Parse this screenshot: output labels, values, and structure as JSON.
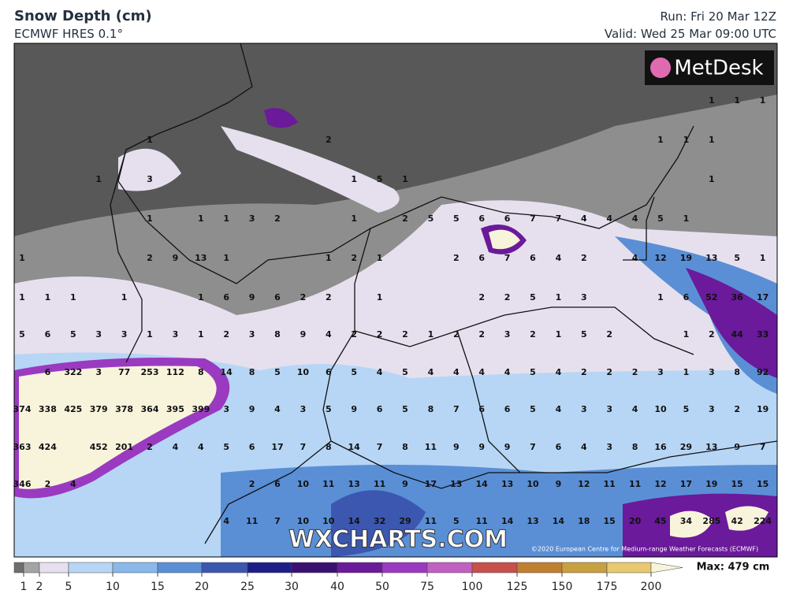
{
  "header": {
    "title": "Snow Depth (cm)",
    "model": "ECMWF HRES 0.1°",
    "run": "Run: Fri 20 Mar 12Z",
    "valid": "Valid: Wed 25 Mar 09:00 UTC"
  },
  "logo": "MetDesk",
  "watermark": "WXCHARTS.COM",
  "copyright": "©2020 European Centre for Medium-range Weather Forecasts (ECMWF)",
  "map": {
    "rows": [
      [
        null,
        null,
        null,
        null,
        null,
        null,
        null,
        null,
        null,
        null,
        null,
        null,
        null,
        null,
        null,
        null,
        null,
        null,
        null,
        null,
        null,
        null,
        null,
        null,
        null,
        null,
        null,
        1,
        1,
        1
      ],
      [
        null,
        null,
        null,
        null,
        null,
        1,
        null,
        null,
        null,
        null,
        null,
        null,
        2,
        null,
        null,
        null,
        null,
        null,
        null,
        null,
        null,
        null,
        null,
        null,
        null,
        1,
        1,
        1,
        null,
        null
      ],
      [
        null,
        null,
        null,
        1,
        null,
        3,
        null,
        null,
        null,
        null,
        null,
        null,
        null,
        1,
        5,
        1,
        null,
        null,
        null,
        null,
        null,
        null,
        null,
        null,
        null,
        null,
        null,
        1,
        null,
        null
      ],
      [
        null,
        null,
        null,
        null,
        null,
        1,
        null,
        1,
        1,
        3,
        2,
        null,
        null,
        1,
        null,
        2,
        5,
        5,
        6,
        6,
        7,
        7,
        4,
        4,
        4,
        5,
        1,
        null,
        null,
        null
      ],
      [
        1,
        null,
        null,
        null,
        null,
        2,
        9,
        13,
        1,
        null,
        null,
        null,
        1,
        2,
        1,
        null,
        null,
        2,
        6,
        7,
        6,
        4,
        2,
        null,
        4,
        12,
        19,
        13,
        5,
        1
      ],
      [
        1,
        1,
        1,
        null,
        1,
        null,
        null,
        1,
        6,
        9,
        6,
        2,
        2,
        null,
        1,
        null,
        null,
        null,
        2,
        2,
        5,
        1,
        3,
        null,
        null,
        1,
        6,
        52,
        36,
        17
      ],
      [
        5,
        6,
        5,
        3,
        3,
        1,
        3,
        1,
        2,
        3,
        8,
        9,
        4,
        2,
        2,
        2,
        1,
        2,
        2,
        3,
        2,
        1,
        5,
        2,
        null,
        null,
        1,
        2,
        44,
        33
      ],
      [
        null,
        6,
        322,
        3,
        77,
        253,
        112,
        8,
        14,
        8,
        5,
        10,
        6,
        5,
        4,
        5,
        4,
        4,
        4,
        4,
        5,
        4,
        2,
        2,
        2,
        3,
        1,
        3,
        8,
        92
      ],
      [
        374,
        338,
        425,
        379,
        378,
        364,
        395,
        399,
        3,
        9,
        4,
        3,
        5,
        9,
        6,
        5,
        8,
        7,
        6,
        6,
        5,
        4,
        3,
        3,
        4,
        10,
        5,
        3,
        2,
        19
      ],
      [
        363,
        424,
        null,
        452,
        201,
        2,
        4,
        4,
        5,
        6,
        17,
        7,
        8,
        14,
        7,
        8,
        11,
        9,
        9,
        9,
        7,
        6,
        4,
        3,
        8,
        16,
        29,
        13,
        9,
        7
      ],
      [
        346,
        2,
        4,
        null,
        null,
        null,
        null,
        null,
        null,
        2,
        6,
        10,
        11,
        13,
        11,
        9,
        17,
        13,
        14,
        13,
        10,
        9,
        12,
        11,
        11,
        12,
        17,
        19,
        15,
        15
      ],
      [
        null,
        null,
        null,
        null,
        null,
        null,
        null,
        null,
        4,
        11,
        7,
        10,
        10,
        14,
        32,
        29,
        11,
        5,
        11,
        14,
        13,
        14,
        18,
        15,
        20,
        45,
        34,
        285,
        42,
        224
      ]
    ]
  },
  "colorbar": {
    "levels": [
      1,
      2,
      5,
      10,
      15,
      20,
      25,
      30,
      40,
      50,
      75,
      100,
      125,
      150,
      175,
      200
    ],
    "colors": [
      "#6e6e6e",
      "#a4a4a4",
      "#e6e0ee",
      "#b7d6f5",
      "#8ab8ea",
      "#5a8fd6",
      "#3c57b0",
      "#1e1e8a",
      "#3a1070",
      "#6a1a9a",
      "#9a3ac0",
      "#c060c0",
      "#c8504a",
      "#c08030",
      "#c8a040",
      "#e8c870",
      "#f8f4dc"
    ],
    "max_label": "Max: 479 cm"
  }
}
